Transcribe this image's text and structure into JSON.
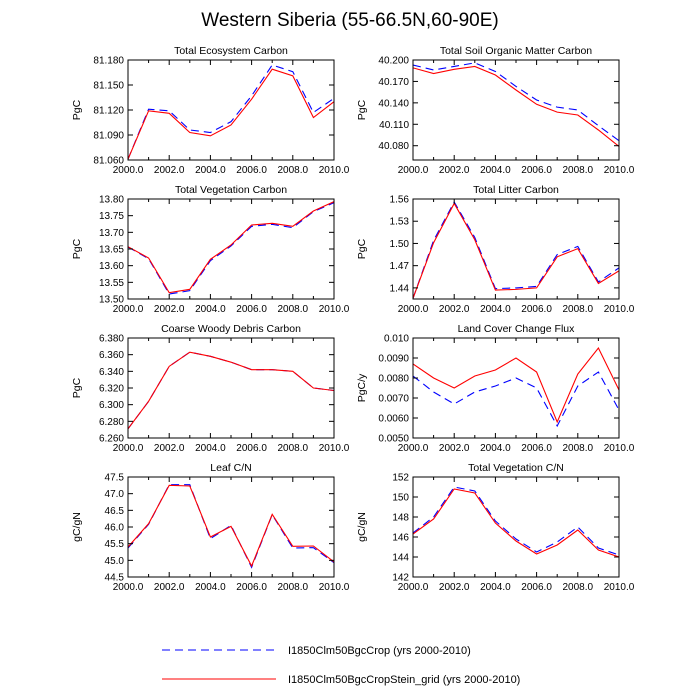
{
  "figure": {
    "title": "Western Siberia (55-66.5N,60-90E)"
  },
  "legend": {
    "placement": "bottom-center",
    "entries": [
      {
        "label": "I1850Clm50BgcCrop (yrs 2000-2010)",
        "color": "#0000ff",
        "dash": "dashed"
      },
      {
        "label": "I1850Clm50BgcCropStein_grid (yrs 2000-2010)",
        "color": "#ff0000",
        "dash": "solid"
      }
    ]
  },
  "chart_data": [
    {
      "type": "line",
      "title": "Total Ecosystem Carbon",
      "ylabel": "PgC",
      "xlim": [
        2000,
        2010
      ],
      "ylim": [
        81.06,
        81.18
      ],
      "yticks": [
        "81.060",
        "81.090",
        "81.120",
        "81.150",
        "81.180"
      ],
      "yticks_values": [
        81.06,
        81.09,
        81.12,
        81.15,
        81.18
      ],
      "xticks": [
        "2000.0",
        "2002.0",
        "2004.0",
        "2006.0",
        "2008.0",
        "2010.0"
      ],
      "x": [
        2000,
        2001,
        2002,
        2003,
        2004,
        2005,
        2006,
        2007,
        2008,
        2009,
        2010
      ],
      "series": [
        {
          "name": "I1850Clm50BgcCrop (yrs 2000-2010)",
          "color": "#0000ff",
          "dash": "dashed",
          "values": [
            81.061,
            81.121,
            81.119,
            81.096,
            81.093,
            81.106,
            81.137,
            81.174,
            81.166,
            81.117,
            81.134
          ]
        },
        {
          "name": "I1850Clm50BgcCropStein_grid (yrs 2000-2010)",
          "color": "#ff0000",
          "dash": "solid",
          "values": [
            81.061,
            81.119,
            81.116,
            81.093,
            81.089,
            81.102,
            81.133,
            81.169,
            81.161,
            81.111,
            81.13
          ]
        }
      ]
    },
    {
      "type": "line",
      "title": "Total Soil Organic Matter Carbon",
      "ylabel": "PgC",
      "xlim": [
        2000,
        2010
      ],
      "ylim": [
        40.06,
        40.2
      ],
      "yticks": [
        "40.080",
        "40.110",
        "40.140",
        "40.170",
        "40.200"
      ],
      "yticks_values": [
        40.08,
        40.11,
        40.14,
        40.17,
        40.2
      ],
      "xticks": [
        "2000.0",
        "2002.0",
        "2004.0",
        "2006.0",
        "2008.0",
        "2010.0"
      ],
      "x": [
        2000,
        2001,
        2002,
        2003,
        2004,
        2005,
        2006,
        2007,
        2008,
        2009,
        2010
      ],
      "series": [
        {
          "name": "I1850Clm50BgcCrop (yrs 2000-2010)",
          "color": "#0000ff",
          "dash": "dashed",
          "values": [
            40.193,
            40.186,
            40.191,
            40.196,
            40.184,
            40.163,
            40.144,
            40.134,
            40.13,
            40.108,
            40.087
          ]
        },
        {
          "name": "I1850Clm50BgcCropStein_grid (yrs 2000-2010)",
          "color": "#ff0000",
          "dash": "solid",
          "values": [
            40.189,
            40.181,
            40.187,
            40.191,
            40.179,
            40.158,
            40.138,
            40.127,
            40.123,
            40.102,
            40.079
          ]
        }
      ]
    },
    {
      "type": "line",
      "title": "Total Vegetation Carbon",
      "ylabel": "PgC",
      "xlim": [
        2000,
        2010
      ],
      "ylim": [
        13.5,
        13.8
      ],
      "yticks": [
        "13.50",
        "13.55",
        "13.60",
        "13.65",
        "13.70",
        "13.75",
        "13.80"
      ],
      "yticks_values": [
        13.5,
        13.55,
        13.6,
        13.65,
        13.7,
        13.75,
        13.8
      ],
      "xticks": [
        "2000.0",
        "2002.0",
        "2004.0",
        "2006.0",
        "2008.0",
        "2010.0"
      ],
      "x": [
        2000,
        2001,
        2002,
        2003,
        2004,
        2005,
        2006,
        2007,
        2008,
        2009,
        2010
      ],
      "series": [
        {
          "name": "I1850Clm50BgcCrop (yrs 2000-2010)",
          "color": "#0000ff",
          "dash": "dashed",
          "values": [
            13.656,
            13.621,
            13.515,
            13.525,
            13.615,
            13.659,
            13.718,
            13.724,
            13.714,
            13.762,
            13.789
          ]
        },
        {
          "name": "I1850Clm50BgcCropStein_grid (yrs 2000-2010)",
          "color": "#ff0000",
          "dash": "solid",
          "values": [
            13.657,
            13.623,
            13.519,
            13.529,
            13.619,
            13.662,
            13.722,
            13.727,
            13.718,
            13.764,
            13.792
          ]
        }
      ]
    },
    {
      "type": "line",
      "title": "Total Litter Carbon",
      "ylabel": "PgC",
      "xlim": [
        2000,
        2010
      ],
      "ylim": [
        1.425,
        1.56
      ],
      "yticks": [
        "1.44",
        "1.47",
        "1.50",
        "1.53",
        "1.56"
      ],
      "yticks_values": [
        1.44,
        1.47,
        1.5,
        1.53,
        1.56
      ],
      "xticks": [
        "2000.0",
        "2002.0",
        "2004.0",
        "2006.0",
        "2008.0",
        "2010.0"
      ],
      "x": [
        2000,
        2001,
        2002,
        2003,
        2004,
        2005,
        2006,
        2007,
        2008,
        2009,
        2010
      ],
      "series": [
        {
          "name": "I1850Clm50BgcCrop (yrs 2000-2010)",
          "color": "#0000ff",
          "dash": "dashed",
          "values": [
            1.426,
            1.504,
            1.556,
            1.508,
            1.439,
            1.44,
            1.442,
            1.485,
            1.496,
            1.448,
            1.467
          ]
        },
        {
          "name": "I1850Clm50BgcCropStein_grid (yrs 2000-2010)",
          "color": "#ff0000",
          "dash": "solid",
          "values": [
            1.426,
            1.501,
            1.554,
            1.505,
            1.437,
            1.438,
            1.44,
            1.482,
            1.493,
            1.446,
            1.463
          ]
        }
      ]
    },
    {
      "type": "line",
      "title": "Coarse Woody Debris Carbon",
      "ylabel": "PgC",
      "xlim": [
        2000,
        2010
      ],
      "ylim": [
        6.26,
        6.38
      ],
      "yticks": [
        "6.260",
        "6.280",
        "6.300",
        "6.320",
        "6.340",
        "6.360",
        "6.380"
      ],
      "yticks_values": [
        6.26,
        6.28,
        6.3,
        6.32,
        6.34,
        6.36,
        6.38
      ],
      "xticks": [
        "2000.0",
        "2002.0",
        "2004.0",
        "2006.0",
        "2008.0",
        "2010.0"
      ],
      "x": [
        2000,
        2001,
        2002,
        2003,
        2004,
        2005,
        2006,
        2007,
        2008,
        2009,
        2010
      ],
      "series": [
        {
          "name": "I1850Clm50BgcCrop (yrs 2000-2010)",
          "color": "#0000ff",
          "dash": "dashed",
          "values": [
            6.271,
            6.304,
            6.346,
            6.363,
            6.358,
            6.351,
            6.342,
            6.342,
            6.34,
            6.32,
            6.317
          ]
        },
        {
          "name": "I1850Clm50BgcCropStein_grid (yrs 2000-2010)",
          "color": "#ff0000",
          "dash": "solid",
          "values": [
            6.271,
            6.304,
            6.346,
            6.363,
            6.358,
            6.351,
            6.342,
            6.342,
            6.34,
            6.32,
            6.317
          ]
        }
      ]
    },
    {
      "type": "line",
      "title": "Land Cover Change Flux",
      "ylabel": "PgC/y",
      "xlim": [
        2000,
        2010
      ],
      "ylim": [
        0.005,
        0.01
      ],
      "yticks": [
        "0.0050",
        "0.0060",
        "0.0070",
        "0.0080",
        "0.0090",
        "0.010"
      ],
      "yticks_values": [
        0.005,
        0.006,
        0.007,
        0.008,
        0.009,
        0.01
      ],
      "xticks": [
        "2000.0",
        "2002.0",
        "2004.0",
        "2006.0",
        "2008.0",
        "2010.0"
      ],
      "x": [
        2000,
        2001,
        2002,
        2003,
        2004,
        2005,
        2006,
        2007,
        2008,
        2009,
        2010
      ],
      "series": [
        {
          "name": "I1850Clm50BgcCrop (yrs 2000-2010)",
          "color": "#0000ff",
          "dash": "dashed",
          "values": [
            0.0081,
            0.0073,
            0.0067,
            0.0073,
            0.0076,
            0.008,
            0.0075,
            0.0056,
            0.0076,
            0.0083,
            0.0064
          ]
        },
        {
          "name": "I1850Clm50BgcCropStein_grid (yrs 2000-2010)",
          "color": "#ff0000",
          "dash": "solid",
          "values": [
            0.0087,
            0.008,
            0.0075,
            0.0081,
            0.0084,
            0.009,
            0.0083,
            0.0058,
            0.0082,
            0.0095,
            0.0074
          ]
        }
      ]
    },
    {
      "type": "line",
      "title": "Leaf C/N",
      "ylabel": "gC/gN",
      "xlim": [
        2000,
        2010
      ],
      "ylim": [
        44.5,
        47.5
      ],
      "yticks": [
        "44.5",
        "45.0",
        "45.5",
        "46.0",
        "46.5",
        "47.0",
        "47.5"
      ],
      "yticks_values": [
        44.5,
        45,
        45.5,
        46,
        46.5,
        47,
        47.5
      ],
      "xticks": [
        "2000.0",
        "2002.0",
        "2004.0",
        "2006.0",
        "2008.0",
        "2010.0"
      ],
      "x": [
        2000,
        2001,
        2002,
        2003,
        2004,
        2005,
        2006,
        2007,
        2008,
        2009,
        2010
      ],
      "series": [
        {
          "name": "I1850Clm50BgcCrop (yrs 2000-2010)",
          "color": "#0000ff",
          "dash": "dashed",
          "values": [
            45.37,
            46.08,
            47.27,
            47.27,
            45.65,
            46.05,
            44.79,
            46.37,
            45.37,
            45.38,
            44.93
          ]
        },
        {
          "name": "I1850Clm50BgcCropStein_grid (yrs 2000-2010)",
          "color": "#ff0000",
          "dash": "solid",
          "values": [
            45.4,
            46.1,
            47.25,
            47.23,
            45.7,
            46.02,
            44.83,
            46.38,
            45.42,
            45.43,
            44.95
          ]
        }
      ]
    },
    {
      "type": "line",
      "title": "Total Vegetation C/N",
      "ylabel": "gC/gN",
      "xlim": [
        2000,
        2010
      ],
      "ylim": [
        142,
        152
      ],
      "yticks": [
        "142",
        "144",
        "146",
        "148",
        "150",
        "152"
      ],
      "yticks_values": [
        142,
        144,
        146,
        148,
        150,
        152
      ],
      "xticks": [
        "2000.0",
        "2002.0",
        "2004.0",
        "2006.0",
        "2008.0",
        "2010.0"
      ],
      "x": [
        2000,
        2001,
        2002,
        2003,
        2004,
        2005,
        2006,
        2007,
        2008,
        2009,
        2010
      ],
      "series": [
        {
          "name": "I1850Clm50BgcCrop (yrs 2000-2010)",
          "color": "#0000ff",
          "dash": "dashed",
          "values": [
            146.4,
            148,
            151,
            150.6,
            147.6,
            145.8,
            144.5,
            145.5,
            147,
            144.9,
            144.2
          ]
        },
        {
          "name": "I1850Clm50BgcCropStein_grid (yrs 2000-2010)",
          "color": "#ff0000",
          "dash": "solid",
          "values": [
            146.3,
            147.8,
            150.8,
            150.4,
            147.4,
            145.6,
            144.3,
            145.2,
            146.7,
            144.7,
            144.0
          ]
        }
      ]
    }
  ]
}
